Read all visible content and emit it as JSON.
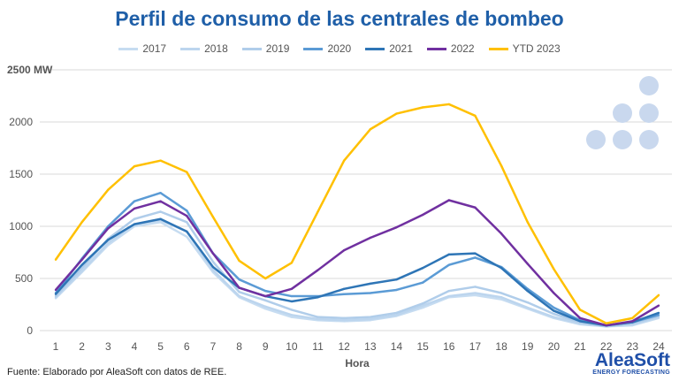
{
  "chart_data": {
    "type": "line",
    "title": "Perfil de consumo de las centrales de bombeo",
    "xlabel": "Hora",
    "ylabel": "",
    "y_unit_label": "2500 MW",
    "ylim": [
      0,
      2500
    ],
    "yticks": [
      "0",
      "500",
      "1000",
      "1500",
      "2000"
    ],
    "grid": true,
    "legend_position": "top",
    "x": [
      1,
      2,
      3,
      4,
      5,
      6,
      7,
      8,
      9,
      10,
      11,
      12,
      13,
      14,
      15,
      16,
      17,
      18,
      19,
      20,
      21,
      22,
      23,
      24
    ],
    "series": [
      {
        "name": "2017",
        "color": "#c6dcf1",
        "values": [
          310,
          560,
          820,
          1000,
          1040,
          900,
          560,
          320,
          210,
          130,
          100,
          90,
          100,
          140,
          220,
          320,
          340,
          300,
          210,
          120,
          60,
          40,
          50,
          120
        ]
      },
      {
        "name": "2018",
        "color": "#bcd5ee",
        "values": [
          320,
          570,
          840,
          1020,
          1060,
          950,
          580,
          330,
          230,
          150,
          110,
          100,
          110,
          150,
          240,
          330,
          360,
          320,
          220,
          130,
          70,
          40,
          60,
          130
        ]
      },
      {
        "name": "2019",
        "color": "#b0cdea",
        "values": [
          330,
          600,
          880,
          1070,
          1140,
          1040,
          660,
          370,
          290,
          200,
          130,
          120,
          130,
          170,
          260,
          380,
          420,
          360,
          270,
          160,
          80,
          40,
          70,
          140
        ]
      },
      {
        "name": "2020",
        "color": "#5b9bd5",
        "values": [
          360,
          690,
          1000,
          1240,
          1320,
          1150,
          740,
          490,
          380,
          330,
          330,
          350,
          360,
          390,
          460,
          630,
          700,
          610,
          400,
          220,
          100,
          50,
          80,
          150
        ]
      },
      {
        "name": "2021",
        "color": "#2e75b6",
        "values": [
          350,
          630,
          870,
          1020,
          1070,
          950,
          610,
          410,
          330,
          280,
          320,
          400,
          450,
          490,
          600,
          730,
          740,
          600,
          380,
          190,
          90,
          50,
          80,
          170
        ]
      },
      {
        "name": "2022",
        "color": "#7030a0",
        "values": [
          390,
          680,
          980,
          1170,
          1240,
          1100,
          740,
          410,
          330,
          400,
          580,
          770,
          890,
          990,
          1110,
          1250,
          1180,
          930,
          640,
          360,
          120,
          50,
          90,
          240
        ]
      },
      {
        "name": "YTD 2023",
        "color": "#ffc000",
        "values": [
          680,
          1040,
          1350,
          1575,
          1630,
          1520,
          1090,
          670,
          500,
          650,
          1140,
          1630,
          1930,
          2080,
          2140,
          2170,
          2060,
          1580,
          1040,
          590,
          200,
          70,
          120,
          340
        ]
      }
    ]
  },
  "footer": "Fuente: Elaborado por AleaSoft con datos de REE.",
  "logo": {
    "name": "AleaSoft",
    "tagline": "ENERGY FORECASTING"
  }
}
